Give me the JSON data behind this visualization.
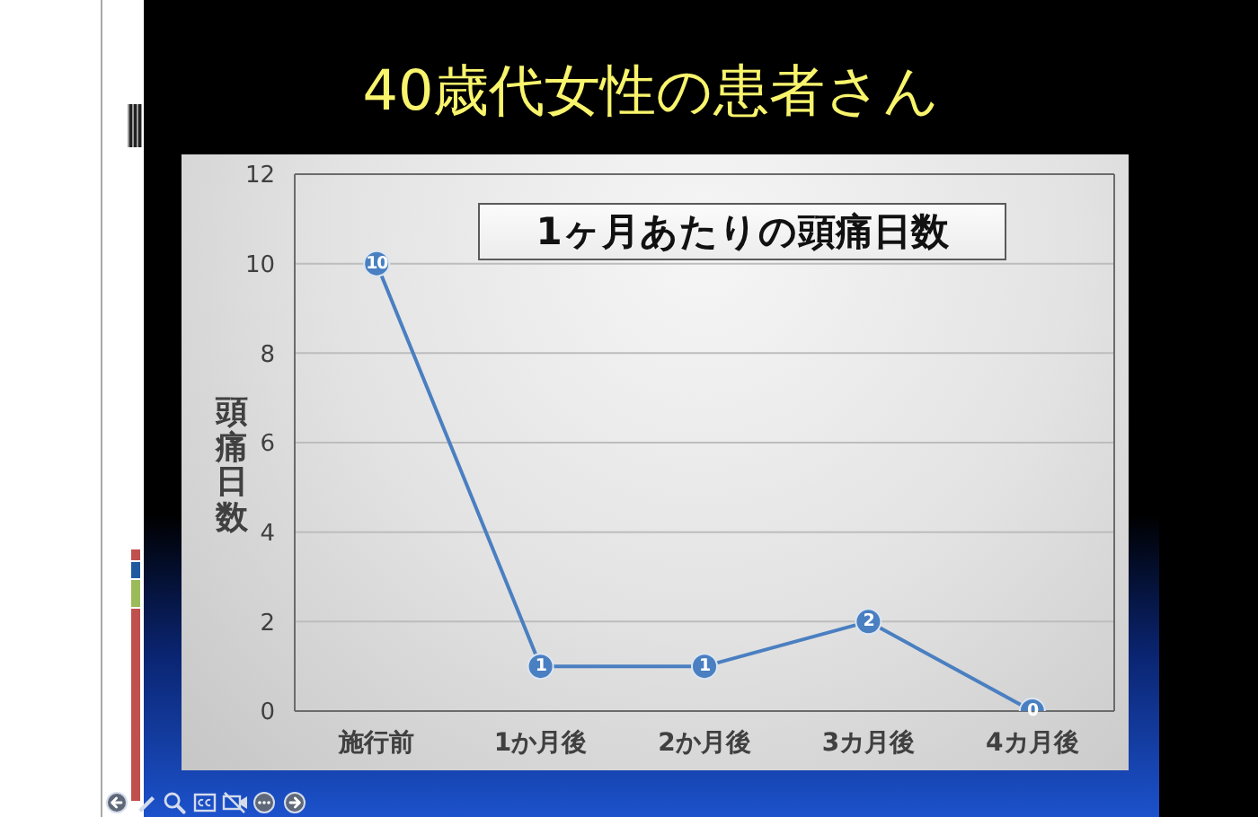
{
  "chart_data": {
    "type": "line",
    "title": "40歳代女性の患者さん",
    "subtitle": "1ヶ月あたりの頭痛日数",
    "ylabel": "頭痛日数",
    "categories": [
      "施行前",
      "1か月後",
      "2か月後",
      "3カ月後",
      "4カ月後"
    ],
    "values": [
      10,
      1,
      1,
      2,
      0
    ],
    "color": "#4a7fc1",
    "ylim": [
      0,
      12
    ],
    "yticks": [
      0,
      2,
      4,
      6,
      8,
      10,
      12
    ],
    "grid": "y",
    "marker": "circle",
    "line_style": "solid",
    "data_labels": true
  }
}
